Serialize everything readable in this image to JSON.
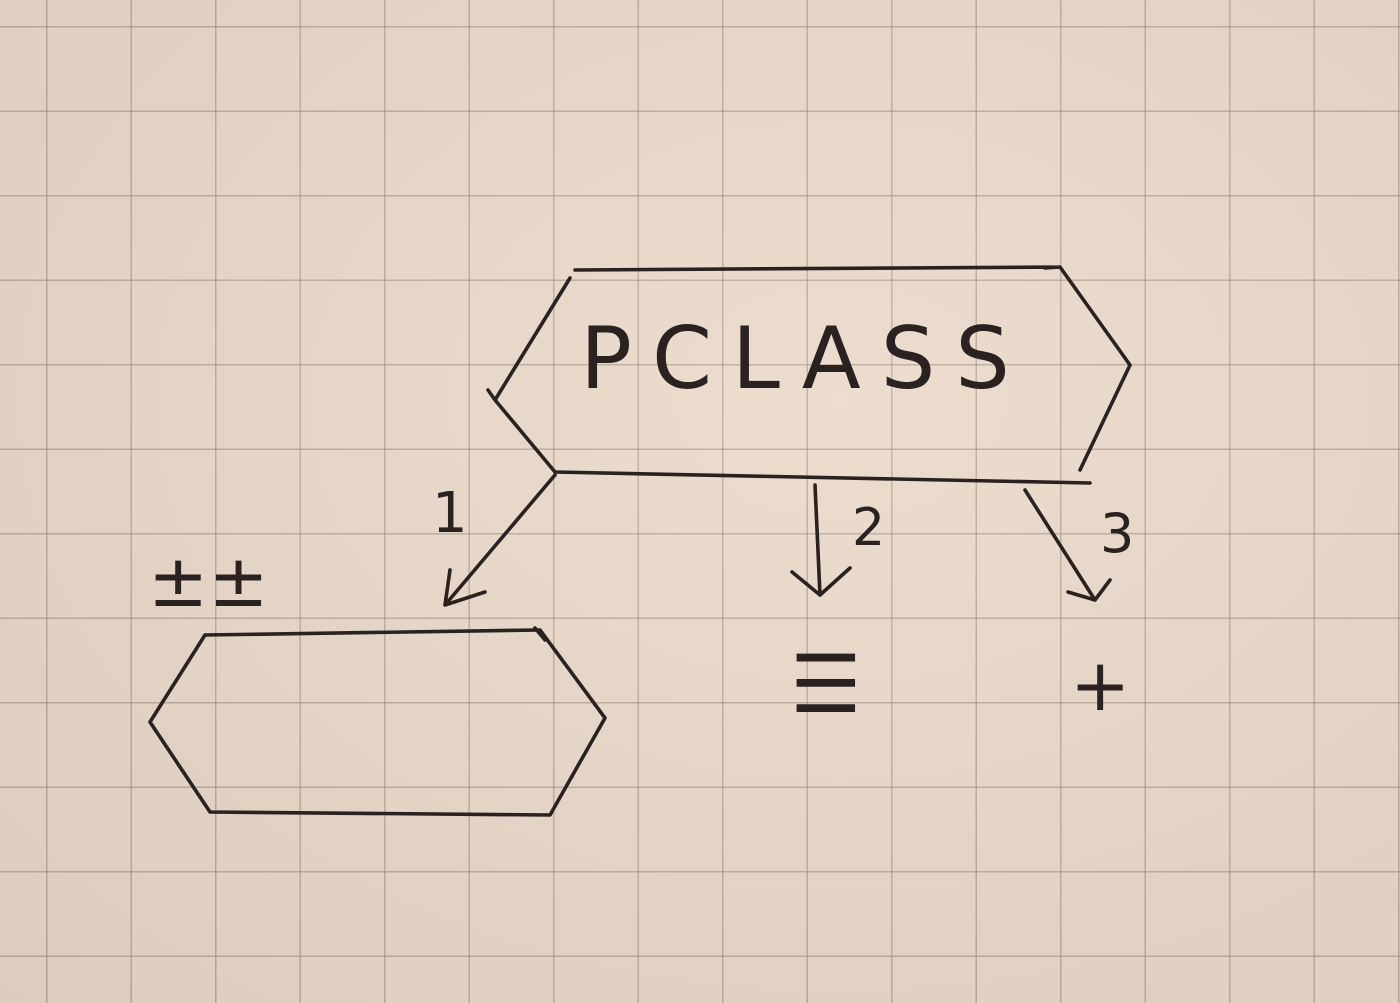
{
  "diagram": {
    "main_node": {
      "label": "PCLASS"
    },
    "edges": [
      {
        "label": "1"
      },
      {
        "label": "2"
      },
      {
        "label": "3"
      }
    ],
    "child_symbols": {
      "edge_1_symbol": "±±",
      "edge_2_symbol": "☰",
      "edge_3_symbol": "+"
    }
  }
}
